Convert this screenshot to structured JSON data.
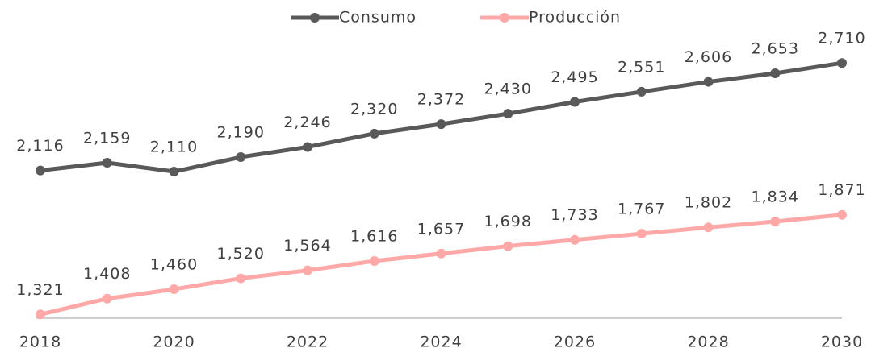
{
  "chart_data": {
    "type": "line",
    "x": [
      2018,
      2019,
      2020,
      2021,
      2022,
      2023,
      2024,
      2025,
      2026,
      2027,
      2028,
      2029,
      2030
    ],
    "xlim": [
      2018,
      2030
    ],
    "xticks": [
      2018,
      2020,
      2022,
      2024,
      2026,
      2028,
      2030
    ],
    "ylim": [
      1300,
      2880
    ],
    "legend": "top",
    "series": [
      {
        "name": "Consumo",
        "color": "#595959",
        "values": [
          2116,
          2159,
          2110,
          2190,
          2246,
          2320,
          2372,
          2430,
          2495,
          2551,
          2606,
          2653,
          2710
        ],
        "value_labels": [
          "2,116",
          "2,159",
          "2,110",
          "2,190",
          "2,246",
          "2,320",
          "2,372",
          "2,430",
          "2,495",
          "2,551",
          "2,606",
          "2,653",
          "2,710"
        ]
      },
      {
        "name": "Producción",
        "color": "#ffa8a8",
        "values": [
          1321,
          1408,
          1460,
          1520,
          1564,
          1616,
          1657,
          1698,
          1733,
          1767,
          1802,
          1834,
          1871
        ],
        "value_labels": [
          "1,321",
          "1,408",
          "1,460",
          "1,520",
          "1,564",
          "1,616",
          "1,657",
          "1,698",
          "1,733",
          "1,767",
          "1,802",
          "1,834",
          "1,871"
        ]
      }
    ]
  }
}
